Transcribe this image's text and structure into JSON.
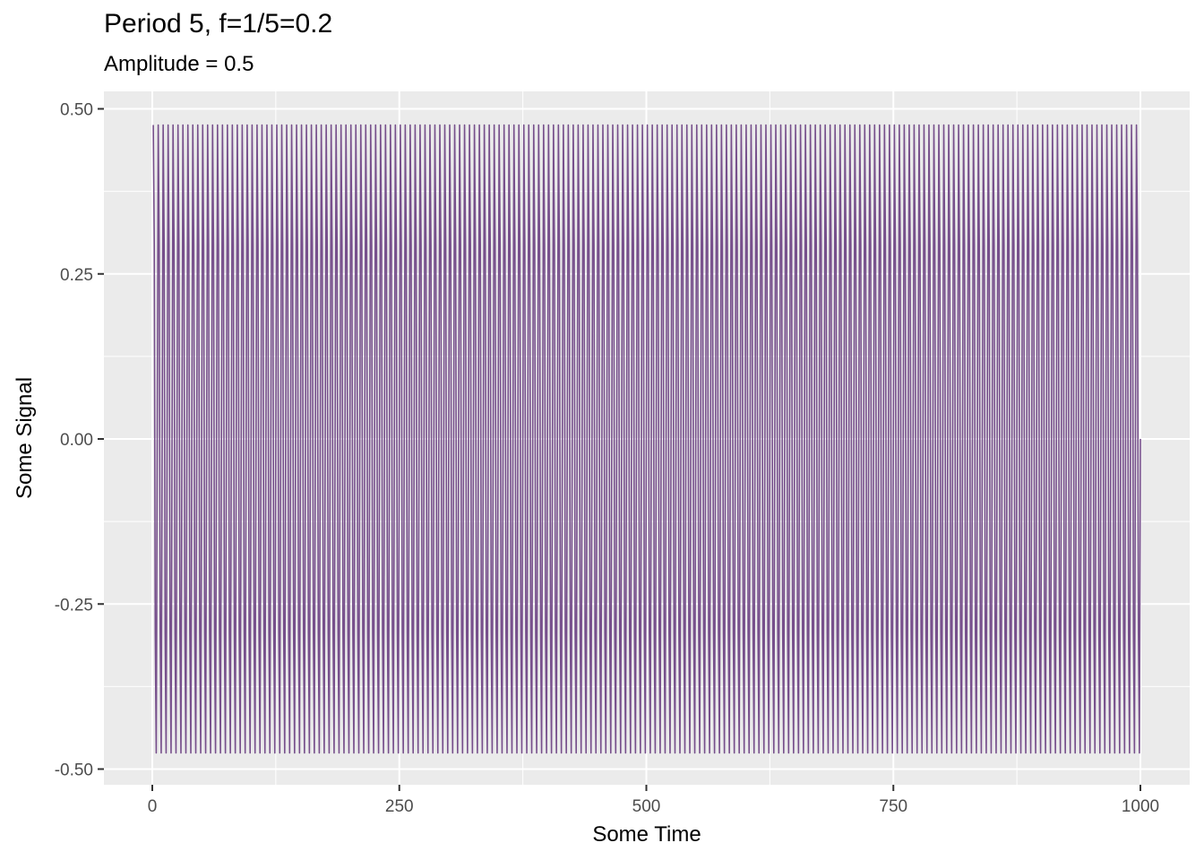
{
  "chart_data": {
    "type": "line",
    "title": "Period 5, f=1/5=0.2",
    "subtitle": "Amplitude = 0.5",
    "xlabel": "Some Time",
    "ylabel": "Some Signal",
    "xlim": [
      0,
      1000
    ],
    "ylim": [
      -0.5,
      0.5
    ],
    "x_ticks": [
      0,
      250,
      500,
      750,
      1000
    ],
    "x_tick_labels": [
      "0",
      "250",
      "500",
      "750",
      "1000"
    ],
    "y_ticks": [
      -0.5,
      -0.25,
      0,
      0.25,
      0.5
    ],
    "y_tick_labels": [
      "-0.50",
      "-0.25",
      "0.00",
      "0.25",
      "0.50"
    ],
    "grid": true,
    "series": [
      {
        "color": "#77508c",
        "function": "0.5*sin(2*pi*0.2*t)",
        "amplitude": 0.5,
        "period": 5,
        "frequency": 0.2,
        "x_range": [
          1,
          1000
        ],
        "x_step": 1
      }
    ]
  }
}
